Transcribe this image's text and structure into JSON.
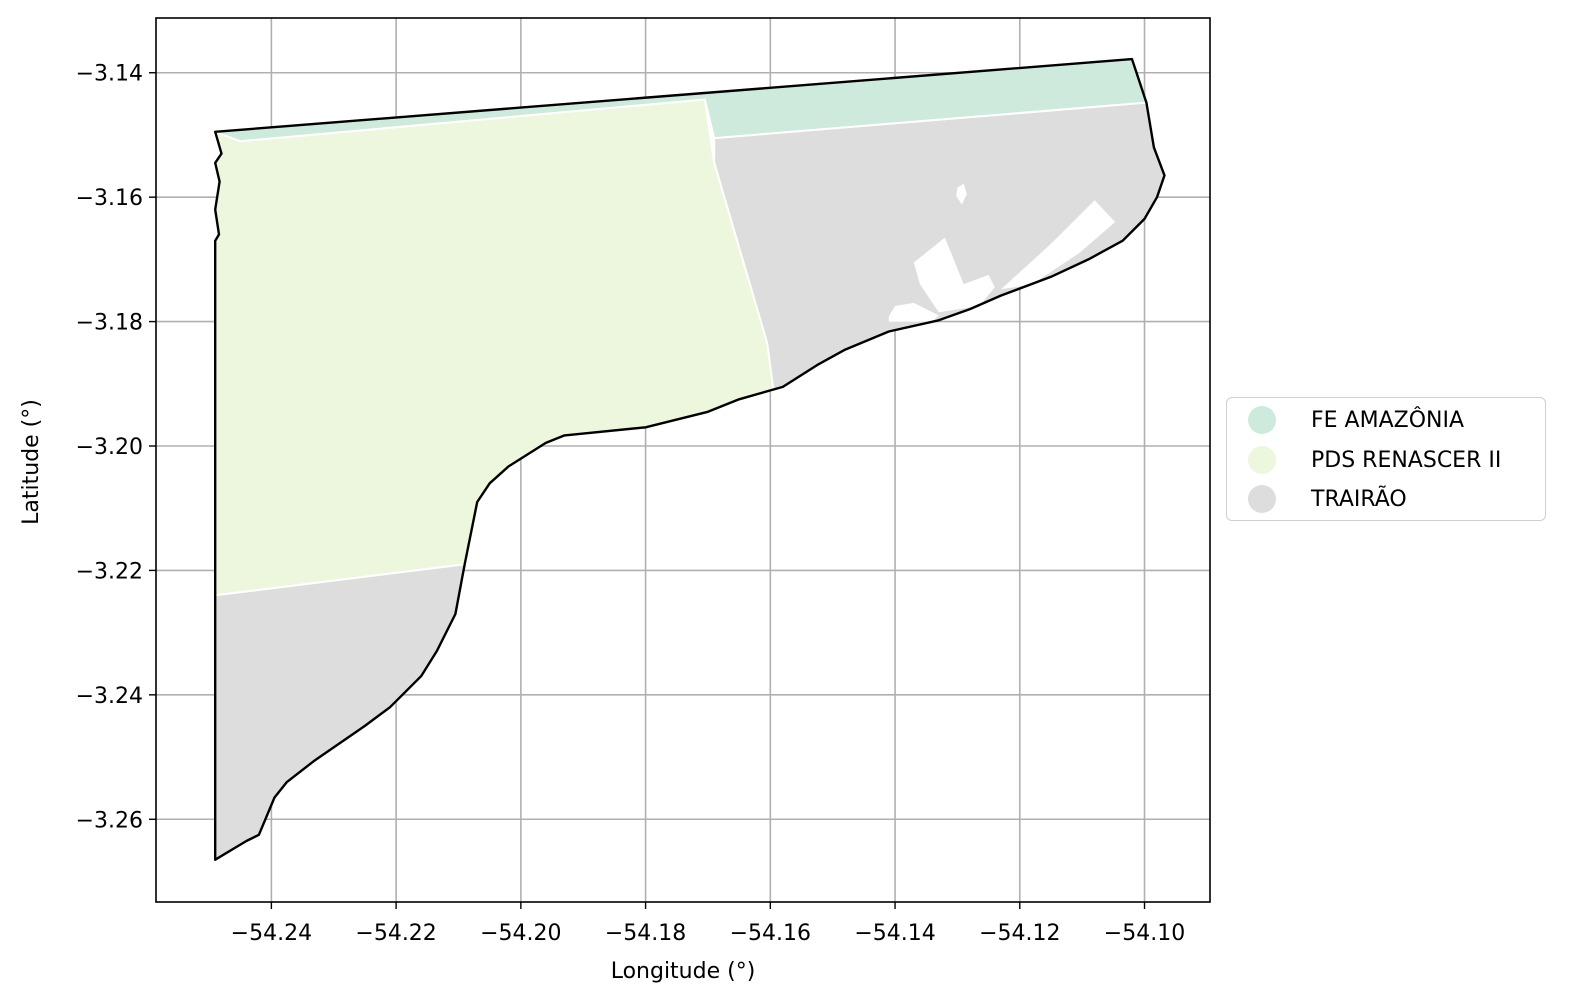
{
  "chart_data": {
    "type": "map",
    "xlabel": "Longitude (°)",
    "ylabel": "Latitude (°)",
    "xlim": [
      -54.2585,
      -54.0895
    ],
    "ylim": [
      -3.2733,
      -3.1312
    ],
    "x_ticks": [
      -54.24,
      -54.22,
      -54.2,
      -54.18,
      -54.16,
      -54.14,
      -54.12,
      -54.1
    ],
    "x_tick_labels": [
      "−54.24",
      "−54.22",
      "−54.20",
      "−54.18",
      "−54.16",
      "−54.14",
      "−54.12",
      "−54.10"
    ],
    "y_ticks": [
      -3.14,
      -3.16,
      -3.18,
      -3.2,
      -3.22,
      -3.24,
      -3.26
    ],
    "y_tick_labels": [
      "−3.14",
      "−3.16",
      "−3.18",
      "−3.20",
      "−3.22",
      "−3.24",
      "−3.26"
    ],
    "grid": true,
    "legend_position": "right-center",
    "series": [
      {
        "name": "FE AMAZÔNIA",
        "color": "#cdeadc"
      },
      {
        "name": "PDS RENASCER II",
        "color": "#edf7dd"
      },
      {
        "name": "TRAIRÃO",
        "color": "#dddddd"
      }
    ],
    "outline_color": "#000000",
    "regions": {
      "fe_amazonia": [
        [
          -54.245,
          -3.151
        ],
        [
          -54.249,
          -3.1495
        ],
        [
          -54.102,
          -3.1378
        ],
        [
          -54.0997,
          -3.1448
        ],
        [
          -54.169,
          -3.1505
        ],
        [
          -54.1705,
          -3.1443
        ]
      ],
      "pds_renascer": [
        [
          -54.245,
          -3.151
        ],
        [
          -54.249,
          -3.1495
        ],
        [
          -54.248,
          -3.153
        ],
        [
          -54.249,
          -3.1545
        ],
        [
          -54.2483,
          -3.1575
        ],
        [
          -54.249,
          -3.162
        ],
        [
          -54.2484,
          -3.166
        ],
        [
          -54.249,
          -3.167
        ],
        [
          -54.249,
          -3.224
        ],
        [
          -54.209,
          -3.219
        ],
        [
          -54.207,
          -3.209
        ],
        [
          -54.205,
          -3.206
        ],
        [
          -54.202,
          -3.2033
        ],
        [
          -54.196,
          -3.1995
        ],
        [
          -54.193,
          -3.1983
        ],
        [
          -54.18,
          -3.197
        ],
        [
          -54.17,
          -3.1945
        ],
        [
          -54.165,
          -3.1925
        ],
        [
          -54.1595,
          -3.191
        ],
        [
          -54.1605,
          -3.1835
        ],
        [
          -54.169,
          -3.1545
        ],
        [
          -54.1705,
          -3.1443
        ]
      ],
      "trairao_north": [
        [
          -54.169,
          -3.1505
        ],
        [
          -54.0997,
          -3.1448
        ],
        [
          -54.0985,
          -3.152
        ],
        [
          -54.0968,
          -3.1565
        ],
        [
          -54.098,
          -3.16
        ],
        [
          -54.1,
          -3.1635
        ],
        [
          -54.1035,
          -3.167
        ],
        [
          -54.109,
          -3.17
        ],
        [
          -54.115,
          -3.1728
        ],
        [
          -54.123,
          -3.1758
        ],
        [
          -54.128,
          -3.178
        ],
        [
          -54.133,
          -3.1798
        ],
        [
          -54.141,
          -3.1816
        ],
        [
          -54.148,
          -3.1845
        ],
        [
          -54.1525,
          -3.187
        ],
        [
          -54.158,
          -3.1905
        ],
        [
          -54.1595,
          -3.191
        ],
        [
          -54.1605,
          -3.1835
        ],
        [
          -54.169,
          -3.1545
        ]
      ],
      "trairao_south": [
        [
          -54.249,
          -3.224
        ],
        [
          -54.209,
          -3.219
        ],
        [
          -54.2105,
          -3.227
        ],
        [
          -54.2135,
          -3.233
        ],
        [
          -54.216,
          -3.237
        ],
        [
          -54.221,
          -3.242
        ],
        [
          -54.225,
          -3.245
        ],
        [
          -54.233,
          -3.2505
        ],
        [
          -54.2375,
          -3.254
        ],
        [
          -54.2395,
          -3.2565
        ],
        [
          -54.242,
          -3.2625
        ],
        [
          -54.244,
          -3.2635
        ],
        [
          -54.249,
          -3.2665
        ]
      ],
      "outline": [
        [
          -54.249,
          -3.1495
        ],
        [
          -54.102,
          -3.1378
        ],
        [
          -54.0997,
          -3.1448
        ],
        [
          -54.0985,
          -3.152
        ],
        [
          -54.0968,
          -3.1565
        ],
        [
          -54.098,
          -3.16
        ],
        [
          -54.1,
          -3.1635
        ],
        [
          -54.1035,
          -3.167
        ],
        [
          -54.109,
          -3.17
        ],
        [
          -54.115,
          -3.1728
        ],
        [
          -54.123,
          -3.1758
        ],
        [
          -54.128,
          -3.178
        ],
        [
          -54.133,
          -3.1798
        ],
        [
          -54.141,
          -3.1816
        ],
        [
          -54.148,
          -3.1845
        ],
        [
          -54.1525,
          -3.187
        ],
        [
          -54.158,
          -3.1905
        ],
        [
          -54.165,
          -3.1925
        ],
        [
          -54.17,
          -3.1945
        ],
        [
          -54.18,
          -3.197
        ],
        [
          -54.193,
          -3.1983
        ],
        [
          -54.196,
          -3.1995
        ],
        [
          -54.202,
          -3.2033
        ],
        [
          -54.205,
          -3.206
        ],
        [
          -54.207,
          -3.209
        ],
        [
          -54.209,
          -3.219
        ],
        [
          -54.2105,
          -3.227
        ],
        [
          -54.2135,
          -3.233
        ],
        [
          -54.216,
          -3.237
        ],
        [
          -54.221,
          -3.242
        ],
        [
          -54.225,
          -3.245
        ],
        [
          -54.233,
          -3.2505
        ],
        [
          -54.2375,
          -3.254
        ],
        [
          -54.2395,
          -3.2565
        ],
        [
          -54.242,
          -3.2625
        ],
        [
          -54.244,
          -3.2635
        ],
        [
          -54.249,
          -3.2665
        ],
        [
          -54.249,
          -3.167
        ],
        [
          -54.2484,
          -3.166
        ],
        [
          -54.249,
          -3.162
        ],
        [
          -54.2483,
          -3.1575
        ],
        [
          -54.249,
          -3.1545
        ],
        [
          -54.248,
          -3.153
        ]
      ],
      "white_holes": [
        [
          [
            -54.13,
            -3.1585
          ],
          [
            -54.129,
            -3.1578
          ],
          [
            -54.1285,
            -3.1595
          ],
          [
            -54.1293,
            -3.1612
          ],
          [
            -54.1302,
            -3.1598
          ]
        ],
        [
          [
            -54.137,
            -3.1705
          ],
          [
            -54.132,
            -3.1665
          ],
          [
            -54.131,
            -3.169
          ],
          [
            -54.129,
            -3.174
          ],
          [
            -54.125,
            -3.1725
          ],
          [
            -54.124,
            -3.1745
          ],
          [
            -54.1265,
            -3.1775
          ],
          [
            -54.133,
            -3.1785
          ],
          [
            -54.136,
            -3.174
          ]
        ],
        [
          [
            -54.123,
            -3.1748
          ],
          [
            -54.115,
            -3.1675
          ],
          [
            -54.108,
            -3.1605
          ],
          [
            -54.1047,
            -3.164
          ],
          [
            -54.1105,
            -3.169
          ],
          [
            -54.118,
            -3.174
          ]
        ],
        [
          [
            -54.141,
            -3.1792
          ],
          [
            -54.14,
            -3.1775
          ],
          [
            -54.137,
            -3.177
          ],
          [
            -54.135,
            -3.178
          ],
          [
            -54.133,
            -3.179
          ],
          [
            -54.134,
            -3.18
          ],
          [
            -54.141,
            -3.18
          ]
        ]
      ]
    }
  }
}
